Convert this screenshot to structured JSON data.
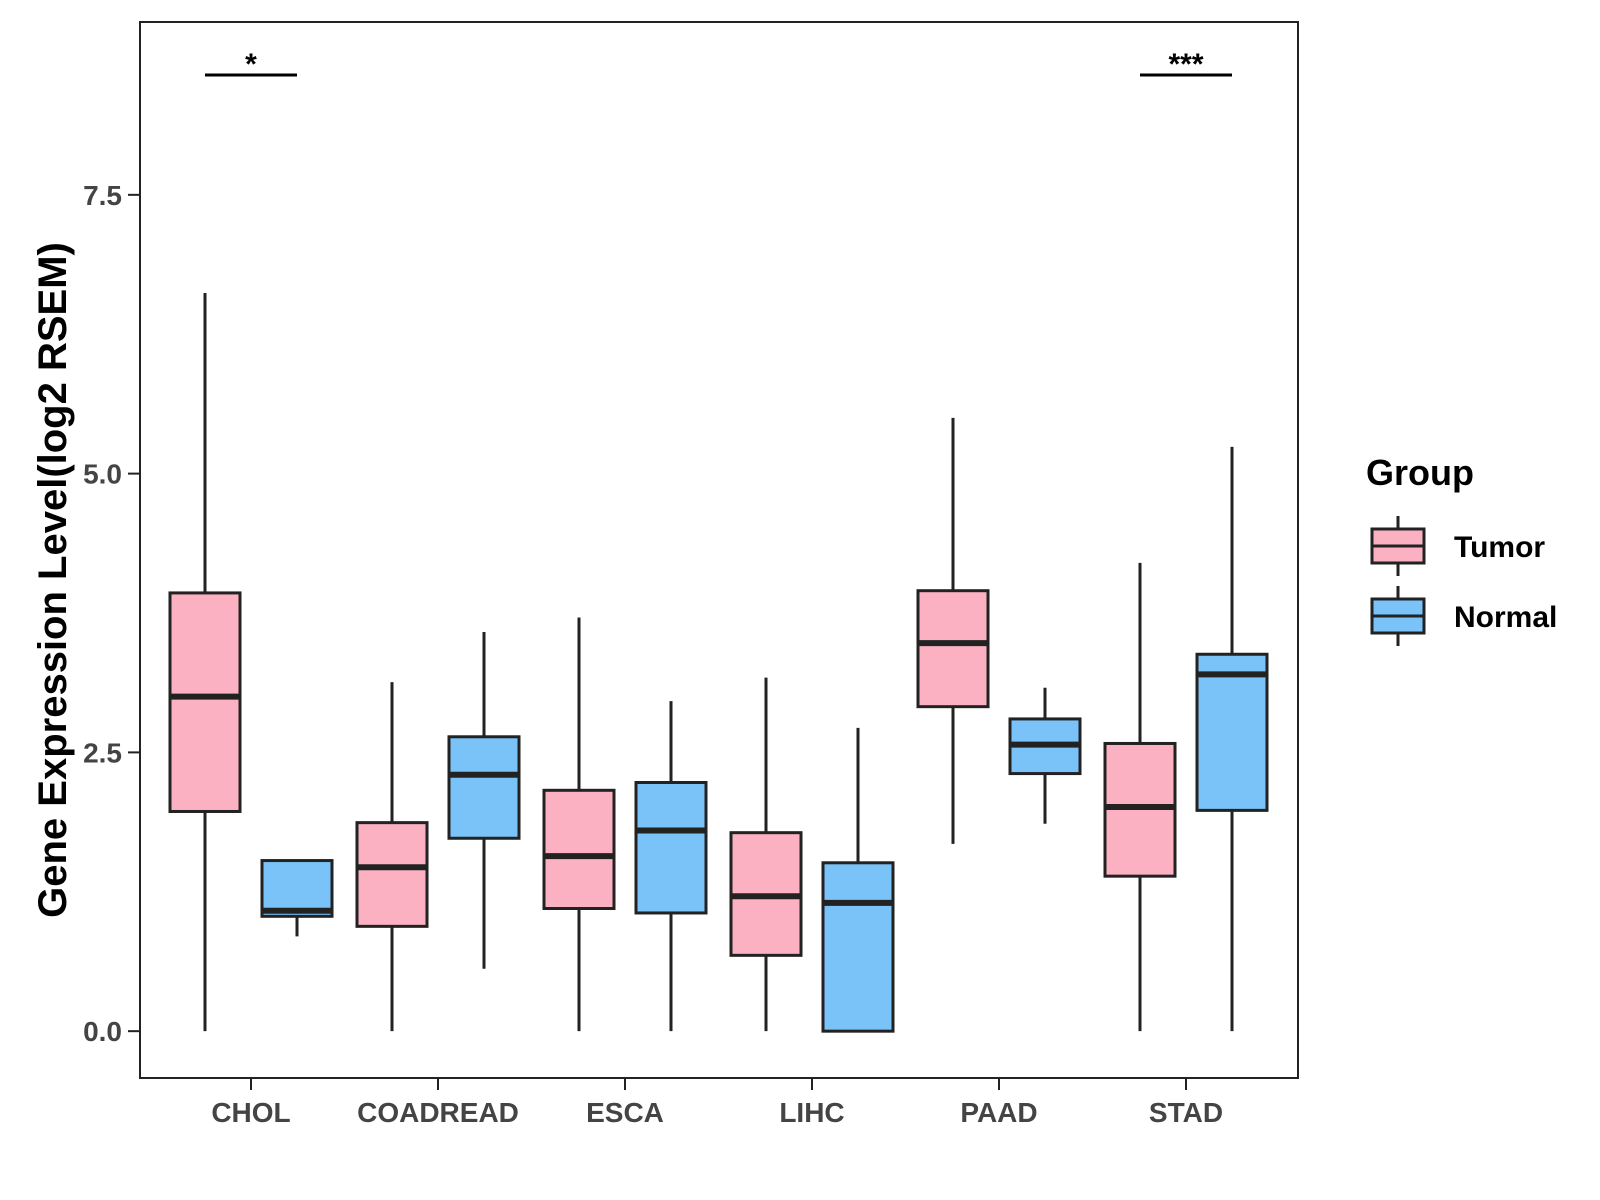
{
  "chart_data": {
    "type": "boxplot",
    "title": "",
    "xlabel": "",
    "ylabel": "Gene Expression Level(log2 RSEM)",
    "ylim": [
      -0.42,
      9.05
    ],
    "y_ticks": [
      0.0,
      2.5,
      5.0,
      7.5
    ],
    "y_tick_labels": [
      "0.0",
      "2.5",
      "5.0",
      "7.5"
    ],
    "grid": false,
    "categories": [
      "CHOL",
      "COADREAD",
      "ESCA",
      "LIHC",
      "PAAD",
      "STAD"
    ],
    "legend": {
      "title": "Group",
      "position": "right",
      "entries": [
        "Tumor",
        "Normal"
      ]
    },
    "colors": {
      "Tumor": "#FBB1C1",
      "Normal": "#79C3F8",
      "outline": "#222222"
    },
    "series": [
      {
        "name": "Tumor",
        "boxes": [
          {
            "min": 0.0,
            "q1": 1.97,
            "median": 3.0,
            "q3": 3.93,
            "max": 6.62
          },
          {
            "min": 0.0,
            "q1": 0.94,
            "median": 1.47,
            "q3": 1.87,
            "max": 3.13
          },
          {
            "min": 0.0,
            "q1": 1.1,
            "median": 1.57,
            "q3": 2.16,
            "max": 3.71
          },
          {
            "min": 0.0,
            "q1": 0.68,
            "median": 1.21,
            "q3": 1.78,
            "max": 3.17
          },
          {
            "min": 1.68,
            "q1": 2.91,
            "median": 3.48,
            "q3": 3.95,
            "max": 5.5
          },
          {
            "min": 0.0,
            "q1": 1.39,
            "median": 2.01,
            "q3": 2.58,
            "max": 4.2
          }
        ]
      },
      {
        "name": "Normal",
        "boxes": [
          {
            "min": 0.85,
            "q1": 1.03,
            "median": 1.08,
            "q3": 1.53,
            "max": 1.53
          },
          {
            "min": 0.56,
            "q1": 1.73,
            "median": 2.3,
            "q3": 2.64,
            "max": 3.58
          },
          {
            "min": 0.0,
            "q1": 1.06,
            "median": 1.8,
            "q3": 2.23,
            "max": 2.96
          },
          {
            "min": 0.0,
            "q1": 0.0,
            "median": 1.15,
            "q3": 1.51,
            "max": 2.72
          },
          {
            "min": 1.86,
            "q1": 2.31,
            "median": 2.57,
            "q3": 2.8,
            "max": 3.08
          },
          {
            "min": 0.0,
            "q1": 1.98,
            "median": 3.2,
            "q3": 3.38,
            "max": 5.24
          }
        ]
      }
    ],
    "significance": [
      {
        "category": "CHOL",
        "label": "*"
      },
      {
        "category": "STAD",
        "label": "***"
      }
    ]
  }
}
